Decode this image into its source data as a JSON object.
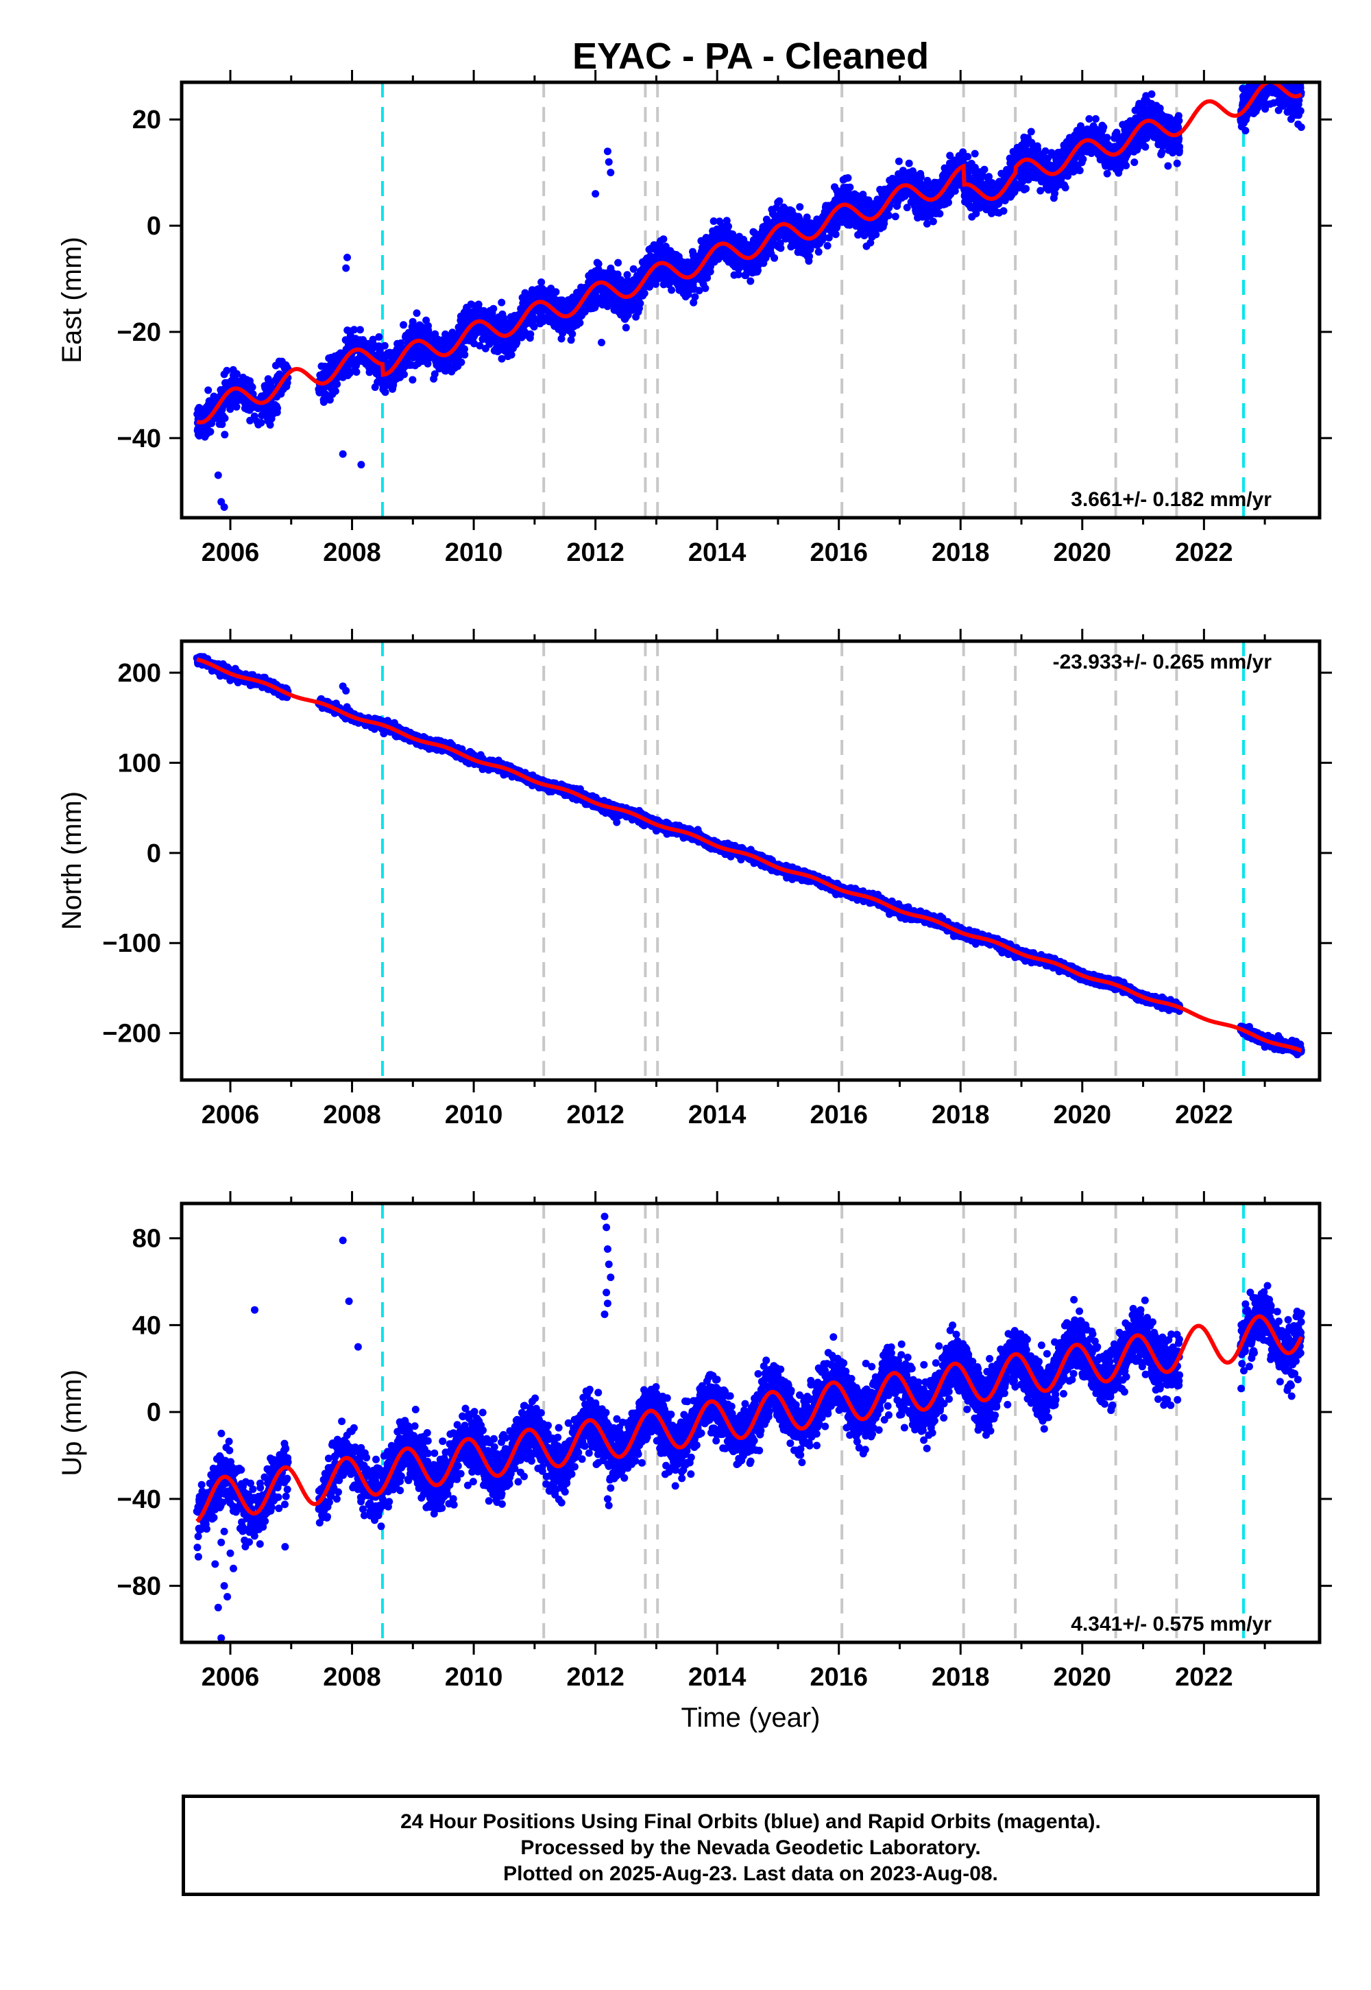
{
  "title": "EYAC  - PA - Cleaned",
  "xlabel": "Time (year)",
  "footer": {
    "line1": "24 Hour Positions Using Final Orbits (blue) and Rapid Orbits (magenta).",
    "line2": "Processed by the Nevada Geodetic Laboratory.",
    "line3": "Plotted on 2025-Aug-23. Last data on 2023-Aug-08."
  },
  "colors": {
    "points": "#0000ff",
    "model": "#ff0000",
    "equipment_change": "#c8c8c8",
    "earthquake": "#00e5ee"
  },
  "chart_data": [
    {
      "type": "scatter",
      "name": "east",
      "ylabel": "East (mm)",
      "rate_label": "3.661+/- 0.182 mm/yr",
      "xlim": [
        2005.2,
        2023.9
      ],
      "ylim": [
        -55,
        27
      ],
      "yticks": [
        -40,
        -20,
        0,
        20
      ],
      "ytick_labels": [
        "−40",
        "−20",
        "0",
        "20"
      ],
      "xticks": [
        2006,
        2008,
        2010,
        2012,
        2014,
        2016,
        2018,
        2020,
        2022
      ],
      "xtick_labels": [
        "2006",
        "2008",
        "2010",
        "2012",
        "2014",
        "2016",
        "2018",
        "2020",
        "2022"
      ],
      "model": {
        "rate": 3.661,
        "ref_year": 2014.5,
        "intercept": -2.0,
        "seasonal_amp": 2.2,
        "seasonal_phase": 0.8,
        "noise": 1.8,
        "offsets": [
          {
            "year": 2008.5,
            "jump": -2.0
          },
          {
            "year": 2018.05,
            "jump": -3.5
          },
          {
            "year": 2018.9,
            "jump": 1.0
          }
        ]
      },
      "gaps": [
        [
          2006.95,
          2007.45
        ],
        [
          2021.6,
          2022.6
        ]
      ],
      "outliers": [
        [
          2005.8,
          -47
        ],
        [
          2005.85,
          -52
        ],
        [
          2005.9,
          -53
        ],
        [
          2007.85,
          -43
        ],
        [
          2007.9,
          -8
        ],
        [
          2007.92,
          -6
        ],
        [
          2008.15,
          -45
        ],
        [
          2012.1,
          -22
        ],
        [
          2012.2,
          14
        ],
        [
          2012.22,
          12
        ],
        [
          2012.25,
          10
        ],
        [
          2012.0,
          6
        ]
      ]
    },
    {
      "type": "scatter",
      "name": "north",
      "ylabel": "North (mm)",
      "rate_label": "-23.933+/- 0.265 mm/yr",
      "xlim": [
        2005.2,
        2023.9
      ],
      "ylim": [
        -252,
        235
      ],
      "yticks": [
        -200,
        -100,
        0,
        100,
        200
      ],
      "ytick_labels": [
        "−200",
        "−100",
        "0",
        "100",
        "200"
      ],
      "xticks": [
        2006,
        2008,
        2010,
        2012,
        2014,
        2016,
        2018,
        2020,
        2022
      ],
      "xtick_labels": [
        "2006",
        "2008",
        "2010",
        "2012",
        "2014",
        "2016",
        "2018",
        "2020",
        "2022"
      ],
      "model": {
        "rate": -23.933,
        "ref_year": 2014.5,
        "intercept": -3.0,
        "seasonal_amp": 1.5,
        "seasonal_phase": 0.3,
        "noise": 2.5,
        "offsets": []
      },
      "gaps": [
        [
          2006.95,
          2007.45
        ],
        [
          2021.6,
          2022.6
        ]
      ],
      "outliers": [
        [
          2007.85,
          185
        ],
        [
          2007.9,
          180
        ],
        [
          2012.3,
          40
        ],
        [
          2012.35,
          34
        ]
      ]
    },
    {
      "type": "scatter",
      "name": "up",
      "ylabel": "Up (mm)",
      "rate_label": "4.341+/- 0.575 mm/yr",
      "xlim": [
        2005.2,
        2023.9
      ],
      "ylim": [
        -106,
        96
      ],
      "yticks": [
        -80,
        -40,
        0,
        40,
        80
      ],
      "ytick_labels": [
        "−80",
        "−40",
        "0",
        "40",
        "80"
      ],
      "xticks": [
        2006,
        2008,
        2010,
        2012,
        2014,
        2016,
        2018,
        2020,
        2022
      ],
      "xtick_labels": [
        "2006",
        "2008",
        "2010",
        "2012",
        "2014",
        "2016",
        "2018",
        "2020",
        "2022"
      ],
      "model": {
        "rate": 4.341,
        "ref_year": 2014.5,
        "intercept": -2.0,
        "seasonal_amp": 9.5,
        "seasonal_phase": 0.65,
        "noise": 6.5,
        "offsets": []
      },
      "gaps": [
        [
          2006.95,
          2007.45
        ],
        [
          2021.6,
          2022.6
        ]
      ],
      "outliers": [
        [
          2005.85,
          -104
        ],
        [
          2005.8,
          -90
        ],
        [
          2005.9,
          -80
        ],
        [
          2005.95,
          -85
        ],
        [
          2005.75,
          -70
        ],
        [
          2005.85,
          -60
        ],
        [
          2005.9,
          -55
        ],
        [
          2006.0,
          -65
        ],
        [
          2006.05,
          -72
        ],
        [
          2006.9,
          -62
        ],
        [
          2006.4,
          47
        ],
        [
          2007.85,
          79
        ],
        [
          2007.95,
          51
        ],
        [
          2008.1,
          30
        ],
        [
          2007.7,
          -35
        ],
        [
          2007.75,
          -40
        ],
        [
          2012.15,
          90
        ],
        [
          2012.18,
          85
        ],
        [
          2012.2,
          75
        ],
        [
          2012.22,
          68
        ],
        [
          2012.25,
          62
        ],
        [
          2012.18,
          55
        ],
        [
          2012.2,
          50
        ],
        [
          2012.15,
          45
        ],
        [
          2012.2,
          -40
        ],
        [
          2012.22,
          -43
        ],
        [
          2012.25,
          -35
        ],
        [
          2012.3,
          -30
        ]
      ]
    }
  ],
  "events": {
    "equipment_changes": [
      2011.15,
      2012.82,
      2013.02,
      2016.05,
      2018.05,
      2018.9,
      2020.55,
      2021.55
    ],
    "earthquakes": [
      2008.5,
      2022.65
    ]
  }
}
